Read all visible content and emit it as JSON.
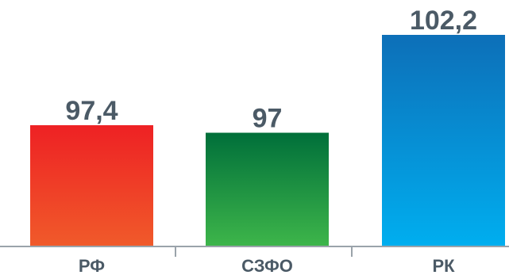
{
  "chart_data": {
    "type": "bar",
    "categories": [
      "РФ",
      "СЗФО",
      "РК"
    ],
    "values": [
      97.4,
      97,
      102.2
    ],
    "value_labels": [
      "97,4",
      "97",
      "102,2"
    ],
    "title": "",
    "xlabel": "",
    "ylabel": "",
    "ylim": [
      90,
      103
    ],
    "grid": false,
    "legend": "none",
    "colors": [
      {
        "top": "#ee2124",
        "bottom": "#f05a2a"
      },
      {
        "top": "#006f3a",
        "bottom": "#3db54a"
      },
      {
        "top": "#0d6fb8",
        "bottom": "#00aeef"
      }
    ],
    "axis_color": "#9aa3aa",
    "text_color": "#4b5a66"
  }
}
